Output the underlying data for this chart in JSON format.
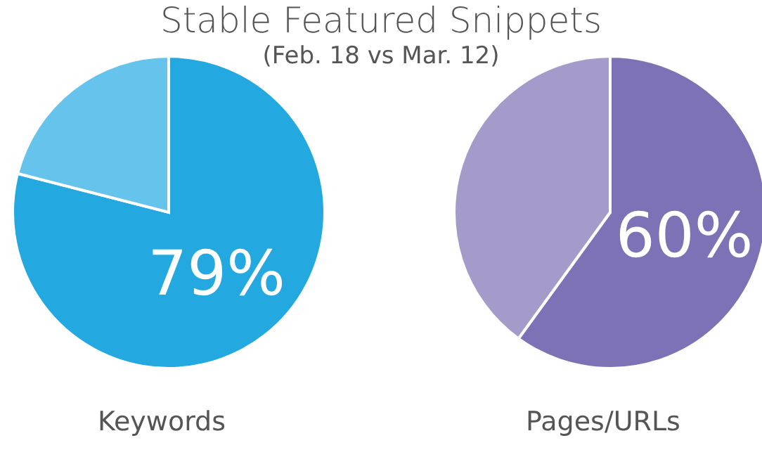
{
  "chart_data": [
    {
      "type": "pie",
      "title": "Stable Featured Snippets",
      "subtitle": "(Feb. 18 vs Mar. 12)",
      "xlabel": "Keywords",
      "categories": [
        null,
        null
      ],
      "values": [
        79,
        21
      ],
      "colors": [
        "#23a8e0",
        "#66c3ec"
      ],
      "value_labels": [
        "79%",
        null
      ]
    },
    {
      "type": "pie",
      "xlabel": "Pages/URLs",
      "categories": [
        null,
        null
      ],
      "values": [
        60,
        40
      ],
      "colors": [
        "#7c72b5",
        "#a49bcb"
      ],
      "value_labels": [
        "60%",
        null
      ]
    }
  ]
}
